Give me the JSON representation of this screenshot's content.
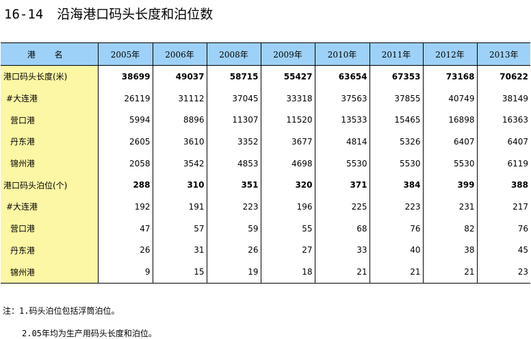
{
  "title": {
    "number": "16-14",
    "text": "沿海港口码头长度和泊位数"
  },
  "table": {
    "header": [
      "港 名",
      "2005年",
      "2006年",
      "2008年",
      "2009年",
      "2010年",
      "2011年",
      "2012年",
      "2013年"
    ],
    "rows": [
      {
        "name": "港口码头长度(米)",
        "values": [
          "38699",
          "49037",
          "58715",
          "55427",
          "63654",
          "67353",
          "73168",
          "70622"
        ]
      },
      {
        "name": "#大连港",
        "values": [
          "26119",
          "31112",
          "37045",
          "33318",
          "37563",
          "37855",
          "40749",
          "38149"
        ]
      },
      {
        "name": "营口港",
        "values": [
          "5994",
          "8896",
          "11307",
          "11520",
          "13533",
          "15465",
          "16898",
          "16363"
        ]
      },
      {
        "name": "丹东港",
        "values": [
          "2605",
          "3610",
          "3352",
          "3677",
          "4814",
          "5326",
          "6407",
          "6407"
        ]
      },
      {
        "name": "锦州港",
        "values": [
          "2058",
          "3542",
          "4853",
          "4698",
          "5530",
          "5530",
          "5530",
          "6119"
        ]
      },
      {
        "name": "港口码头泊位(个)",
        "values": [
          "288",
          "310",
          "351",
          "320",
          "371",
          "384",
          "399",
          "388"
        ]
      },
      {
        "name": "#大连港",
        "values": [
          "192",
          "191",
          "223",
          "196",
          "225",
          "223",
          "231",
          "217"
        ]
      },
      {
        "name": "营口港",
        "values": [
          "47",
          "57",
          "59",
          "55",
          "68",
          "76",
          "82",
          "76"
        ]
      },
      {
        "name": "丹东港",
        "values": [
          "26",
          "31",
          "26",
          "27",
          "33",
          "40",
          "38",
          "45"
        ]
      },
      {
        "name": "锦州港",
        "values": [
          "9",
          "15",
          "19",
          "18",
          "21",
          "21",
          "21",
          "23"
        ]
      }
    ]
  },
  "notes": [
    "注：1.码头泊位包括浮筒泊位。",
    "2.05年均为生产用码头长度和泊位。"
  ]
}
